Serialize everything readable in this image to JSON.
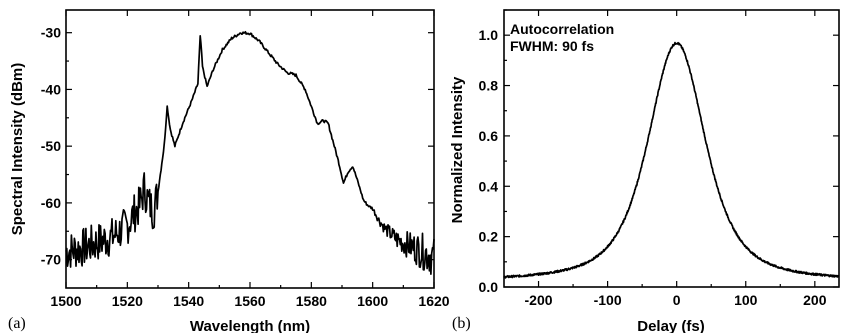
{
  "chart_data": [
    {
      "type": "line",
      "panel_label": "(a)",
      "xlabel": "Wavelength (nm)",
      "ylabel": "Spectral Intensity (dBm)",
      "xlim": [
        1500,
        1620
      ],
      "ylim": [
        -75,
        -26
      ],
      "xticks": [
        1500,
        1520,
        1540,
        1560,
        1580,
        1600,
        1620
      ],
      "yticks": [
        -70,
        -60,
        -50,
        -40,
        -30
      ],
      "grid": false,
      "noise_floor": {
        "x_range": [
          1500,
          1530
        ],
        "mean": -68.5,
        "amplitude": 3.5
      },
      "series": [
        {
          "x": [
            1500,
            1505,
            1510,
            1515,
            1520,
            1522,
            1524,
            1525.5,
            1527,
            1528.5,
            1530,
            1532,
            1533,
            1534,
            1535.5,
            1538,
            1541,
            1543,
            1543.8,
            1544.5,
            1546,
            1548,
            1551,
            1554,
            1557,
            1560,
            1563,
            1566,
            1569,
            1572,
            1575,
            1578,
            1580,
            1582,
            1584,
            1585.5,
            1587,
            1589,
            1590.5,
            1592,
            1593.5,
            1595,
            1597,
            1598.5,
            1600,
            1602,
            1604,
            1606,
            1608,
            1610,
            1612,
            1614,
            1616,
            1618,
            1620
          ],
          "y": [
            -68.5,
            -68,
            -67,
            -66,
            -64,
            -62,
            -60.5,
            -57.5,
            -60,
            -61.5,
            -58,
            -50,
            -43,
            -47,
            -50,
            -46,
            -42,
            -39,
            -30.2,
            -36,
            -39.5,
            -36.5,
            -33,
            -31,
            -30,
            -30.1,
            -31.5,
            -33.5,
            -35.5,
            -37,
            -37.5,
            -40,
            -43,
            -46,
            -45.5,
            -46,
            -49,
            -53,
            -56.5,
            -54.5,
            -53.5,
            -56,
            -59.5,
            -60.5,
            -61,
            -63,
            -64.5,
            -65.5,
            -66.5,
            -67,
            -67.5,
            -68,
            -68.5,
            -69,
            -69.5
          ]
        }
      ]
    },
    {
      "type": "line",
      "panel_label": "(b)",
      "xlabel": "Delay (fs)",
      "ylabel": "Normalized Intensity",
      "xlim": [
        -250,
        235
      ],
      "ylim": [
        0,
        1.1
      ],
      "xticks": [
        -200,
        -100,
        0,
        100,
        200
      ],
      "yticks": [
        0.0,
        0.2,
        0.4,
        0.6,
        0.8,
        1.0
      ],
      "grid": false,
      "annotations": [
        "Autocorrelation",
        "FWHM: 90 fs"
      ],
      "series": [
        {
          "peak_delay": 0,
          "peak_value": 1.0,
          "fwhm": 90,
          "baseline": 0.02,
          "profile": "sech2-like"
        }
      ]
    }
  ]
}
